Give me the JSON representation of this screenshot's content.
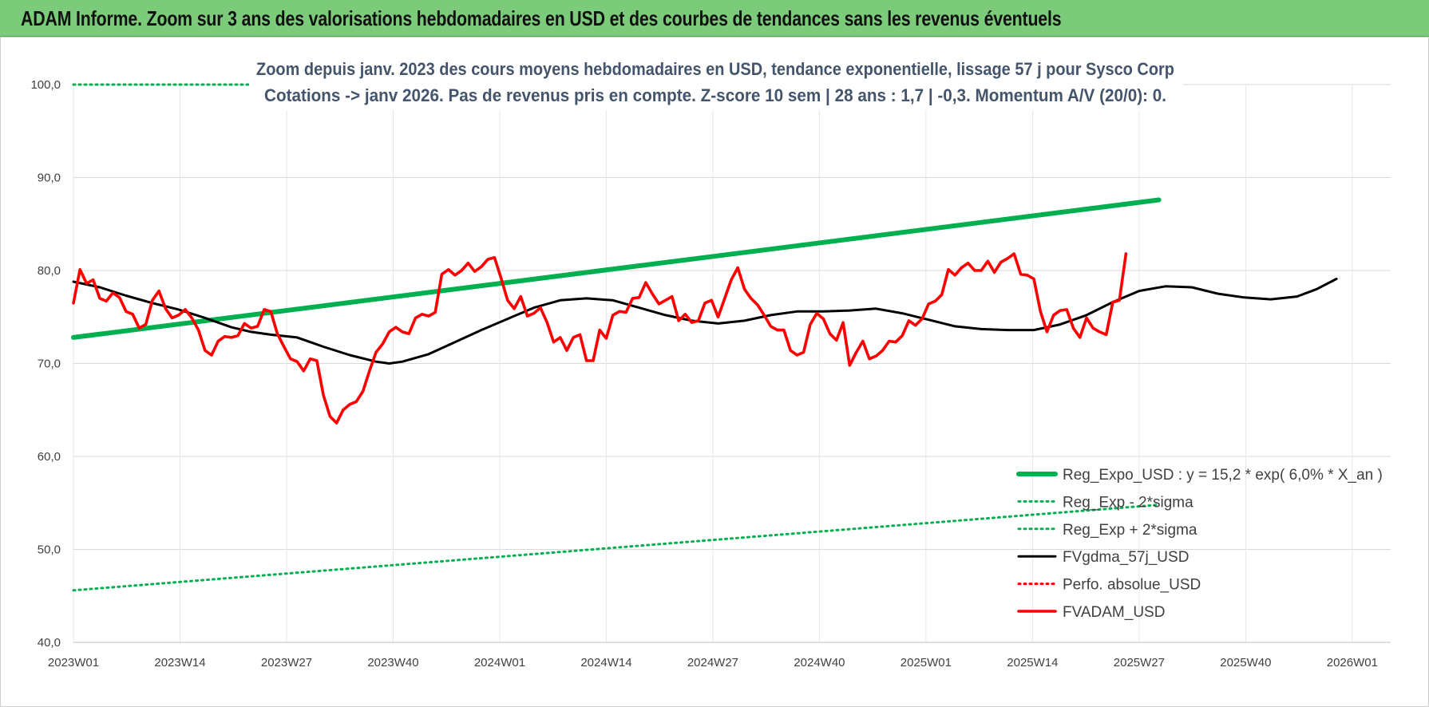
{
  "header": {
    "title": "ADAM Informe. Zoom sur 3 ans des valorisations hebdomadaires en USD et des courbes de tendances sans les revenus éventuels"
  },
  "colors": {
    "header_bg": "#7ccb7a",
    "reg_expo": "#00b050",
    "fvgdma": "#000000",
    "fvadam": "#ff0000",
    "grid": "#d9d9d9"
  },
  "chart_data": {
    "type": "line",
    "subtitle_line1": "Zoom depuis janv. 2023 des cours moyens hebdomadaires en USD, tendance exponentielle, lissage 57 j pour Sysco Corp",
    "subtitle_line2": "Cotations -> janv 2026. Pas de revenus pris en compte. Z-score 10 sem | 28 ans : 1,7 | -0,3. Momentum A/V (20/0): 0.",
    "ylim": [
      40,
      100
    ],
    "y_ticks": [
      "40,0",
      "50,0",
      "60,0",
      "70,0",
      "80,0",
      "90,0",
      "100,0"
    ],
    "x_ticks": [
      "2023W01",
      "2023W14",
      "2023W27",
      "2023W40",
      "2024W01",
      "2024W14",
      "2024W27",
      "2024W40",
      "2025W01",
      "2025W14",
      "2025W27",
      "2025W40",
      "2026W01"
    ],
    "grid": true,
    "legend_position": "bottom-right",
    "series": [
      {
        "name": "Reg_Expo_USD : y = 15,2 * exp( 6,0% *  X_an )",
        "style": "solid-thick",
        "color": "#00b050",
        "values": [
          [
            0,
            72.8
          ],
          [
            165,
            87.6
          ]
        ]
      },
      {
        "name": "Reg_Exp - 2*sigma",
        "style": "dotted",
        "color": "#00b050",
        "values": [
          [
            0,
            45.6
          ],
          [
            165,
            54.8
          ]
        ]
      },
      {
        "name": "Reg_Exp + 2*sigma",
        "style": "dotted",
        "color": "#00b050",
        "values": [
          [
            0,
            100.0
          ],
          [
            165,
            100.0
          ]
        ]
      },
      {
        "name": "FVgdma_57j_USD",
        "style": "solid",
        "color": "#000000",
        "values": [
          [
            0,
            78.8
          ],
          [
            4,
            78.2
          ],
          [
            8,
            77.3
          ],
          [
            12,
            76.5
          ],
          [
            16,
            75.8
          ],
          [
            20,
            74.9
          ],
          [
            24,
            73.9
          ],
          [
            27,
            73.4
          ],
          [
            30,
            73.1
          ],
          [
            34,
            72.8
          ],
          [
            38,
            71.8
          ],
          [
            42,
            70.9
          ],
          [
            46,
            70.2
          ],
          [
            48,
            70.0
          ],
          [
            50,
            70.2
          ],
          [
            54,
            71.0
          ],
          [
            58,
            72.3
          ],
          [
            62,
            73.6
          ],
          [
            66,
            74.8
          ],
          [
            70,
            76.0
          ],
          [
            74,
            76.8
          ],
          [
            78,
            77.0
          ],
          [
            82,
            76.8
          ],
          [
            86,
            76.0
          ],
          [
            90,
            75.2
          ],
          [
            94,
            74.6
          ],
          [
            98,
            74.3
          ],
          [
            102,
            74.6
          ],
          [
            106,
            75.2
          ],
          [
            110,
            75.6
          ],
          [
            114,
            75.6
          ],
          [
            118,
            75.7
          ],
          [
            122,
            75.9
          ],
          [
            126,
            75.4
          ],
          [
            130,
            74.7
          ],
          [
            134,
            74.0
          ],
          [
            138,
            73.7
          ],
          [
            142,
            73.6
          ],
          [
            146,
            73.6
          ],
          [
            150,
            74.2
          ],
          [
            154,
            75.2
          ],
          [
            158,
            76.6
          ],
          [
            162,
            77.8
          ],
          [
            166,
            78.3
          ],
          [
            170,
            78.2
          ],
          [
            174,
            77.5
          ],
          [
            178,
            77.1
          ],
          [
            182,
            76.9
          ],
          [
            186,
            77.2
          ],
          [
            189,
            78.0
          ],
          [
            192,
            79.1
          ]
        ]
      },
      {
        "name": "Perfo. absolue_USD",
        "style": "dotted",
        "color": "#ff0000",
        "values": []
      },
      {
        "name": "FVADAM_USD",
        "style": "solid-thick",
        "color": "#ff0000",
        "values": [
          [
            0,
            76.5
          ],
          [
            1,
            80.1
          ],
          [
            2,
            78.6
          ],
          [
            3,
            79.0
          ],
          [
            4,
            77.0
          ],
          [
            5,
            76.7
          ],
          [
            6,
            77.6
          ],
          [
            7,
            77.1
          ],
          [
            8,
            75.6
          ],
          [
            9,
            75.3
          ],
          [
            10,
            73.8
          ],
          [
            11,
            74.2
          ],
          [
            12,
            76.8
          ],
          [
            13,
            77.8
          ],
          [
            14,
            75.9
          ],
          [
            15,
            74.9
          ],
          [
            16,
            75.2
          ],
          [
            17,
            75.8
          ],
          [
            18,
            74.9
          ],
          [
            19,
            73.6
          ],
          [
            20,
            71.4
          ],
          [
            21,
            70.9
          ],
          [
            22,
            72.4
          ],
          [
            23,
            72.9
          ],
          [
            24,
            72.8
          ],
          [
            25,
            73.0
          ],
          [
            26,
            74.3
          ],
          [
            27,
            73.8
          ],
          [
            28,
            74.0
          ],
          [
            29,
            75.8
          ],
          [
            30,
            75.6
          ],
          [
            31,
            73.2
          ],
          [
            32,
            71.8
          ],
          [
            33,
            70.5
          ],
          [
            34,
            70.2
          ],
          [
            35,
            69.2
          ],
          [
            36,
            70.5
          ],
          [
            37,
            70.3
          ],
          [
            38,
            66.6
          ],
          [
            39,
            64.3
          ],
          [
            40,
            63.6
          ],
          [
            41,
            65.0
          ],
          [
            42,
            65.6
          ],
          [
            43,
            65.9
          ],
          [
            44,
            67.0
          ],
          [
            45,
            69.2
          ],
          [
            46,
            71.2
          ],
          [
            47,
            72.1
          ],
          [
            48,
            73.4
          ],
          [
            49,
            73.9
          ],
          [
            50,
            73.4
          ],
          [
            51,
            73.2
          ],
          [
            52,
            74.9
          ],
          [
            53,
            75.3
          ],
          [
            54,
            75.1
          ],
          [
            55,
            75.5
          ],
          [
            56,
            79.6
          ],
          [
            57,
            80.1
          ],
          [
            58,
            79.5
          ],
          [
            59,
            80.0
          ],
          [
            60,
            80.8
          ],
          [
            61,
            79.9
          ],
          [
            62,
            80.4
          ],
          [
            63,
            81.2
          ],
          [
            64,
            81.4
          ],
          [
            65,
            79.2
          ],
          [
            66,
            76.8
          ],
          [
            67,
            75.9
          ],
          [
            68,
            77.2
          ],
          [
            69,
            75.1
          ],
          [
            70,
            75.4
          ],
          [
            71,
            76.0
          ],
          [
            72,
            74.4
          ],
          [
            73,
            72.3
          ],
          [
            74,
            72.8
          ],
          [
            75,
            71.4
          ],
          [
            76,
            72.8
          ],
          [
            77,
            73.1
          ],
          [
            78,
            70.3
          ],
          [
            79,
            70.3
          ],
          [
            80,
            73.6
          ],
          [
            81,
            72.7
          ],
          [
            82,
            75.2
          ],
          [
            83,
            75.6
          ],
          [
            84,
            75.5
          ],
          [
            85,
            77.0
          ],
          [
            86,
            77.1
          ],
          [
            87,
            78.7
          ],
          [
            88,
            77.5
          ],
          [
            89,
            76.4
          ],
          [
            90,
            76.8
          ],
          [
            91,
            77.2
          ],
          [
            92,
            74.6
          ],
          [
            93,
            75.3
          ],
          [
            94,
            74.4
          ],
          [
            95,
            74.6
          ],
          [
            96,
            76.5
          ],
          [
            97,
            76.8
          ],
          [
            98,
            75.0
          ],
          [
            99,
            77.0
          ],
          [
            100,
            79.0
          ],
          [
            101,
            80.3
          ],
          [
            102,
            78.0
          ],
          [
            103,
            77.0
          ],
          [
            104,
            76.3
          ],
          [
            105,
            75.2
          ],
          [
            106,
            74.0
          ],
          [
            107,
            73.6
          ],
          [
            108,
            73.6
          ],
          [
            109,
            71.4
          ],
          [
            110,
            70.9
          ],
          [
            111,
            71.2
          ],
          [
            112,
            74.2
          ],
          [
            113,
            75.4
          ],
          [
            114,
            74.8
          ],
          [
            115,
            73.2
          ],
          [
            116,
            72.5
          ],
          [
            117,
            74.4
          ],
          [
            118,
            69.8
          ],
          [
            119,
            71.2
          ],
          [
            120,
            72.4
          ],
          [
            121,
            70.5
          ],
          [
            122,
            70.8
          ],
          [
            123,
            71.4
          ],
          [
            124,
            72.4
          ],
          [
            125,
            72.3
          ],
          [
            126,
            73.0
          ],
          [
            127,
            74.6
          ],
          [
            128,
            74.1
          ],
          [
            129,
            74.8
          ],
          [
            130,
            76.4
          ],
          [
            131,
            76.7
          ],
          [
            132,
            77.4
          ],
          [
            133,
            80.1
          ],
          [
            134,
            79.5
          ],
          [
            135,
            80.3
          ],
          [
            136,
            80.8
          ],
          [
            137,
            80.0
          ],
          [
            138,
            80.0
          ],
          [
            139,
            81.0
          ],
          [
            140,
            79.8
          ],
          [
            141,
            80.9
          ],
          [
            142,
            81.3
          ],
          [
            143,
            81.8
          ],
          [
            144,
            79.6
          ],
          [
            145,
            79.5
          ],
          [
            146,
            79.1
          ],
          [
            147,
            75.6
          ],
          [
            148,
            73.4
          ],
          [
            149,
            75.2
          ],
          [
            150,
            75.7
          ],
          [
            151,
            75.8
          ],
          [
            152,
            73.8
          ],
          [
            153,
            72.8
          ],
          [
            154,
            74.9
          ],
          [
            155,
            73.8
          ],
          [
            156,
            73.4
          ],
          [
            157,
            73.1
          ],
          [
            158,
            76.6
          ],
          [
            159,
            76.8
          ],
          [
            160,
            81.8
          ]
        ]
      }
    ]
  }
}
